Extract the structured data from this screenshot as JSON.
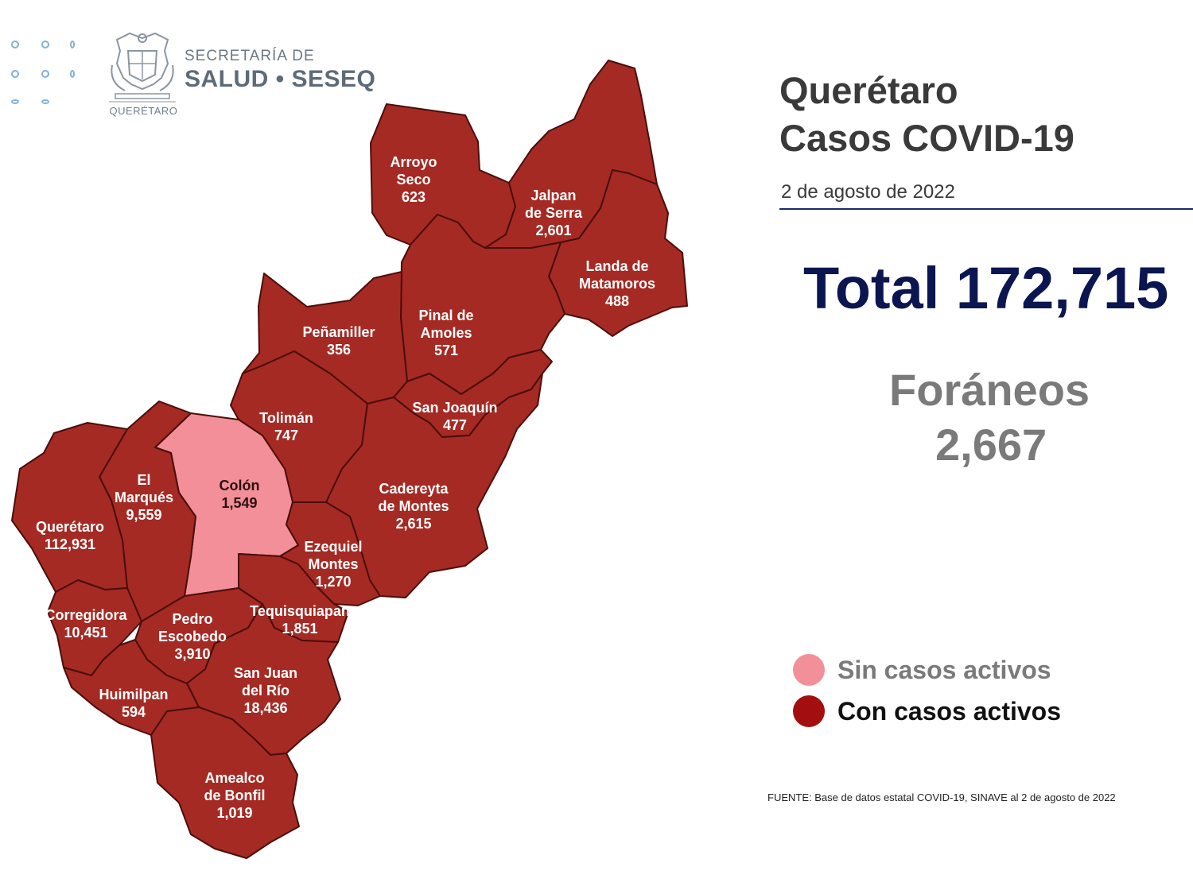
{
  "header": {
    "logo_line1": "SECRETARÍA DE",
    "logo_line2": "SALUD • SESEQ",
    "seal_caption": "QUERÉTARO"
  },
  "title": {
    "line1": "Querétaro",
    "line2": "Casos COVID-19",
    "date": "2 de agosto de 2022"
  },
  "total": "Total 172,715",
  "foraneos": {
    "label": "Foráneos",
    "value": "2,667"
  },
  "legend": {
    "inactive_label": "Sin casos activos",
    "inactive_color": "#f28f98",
    "inactive_text_color": "#7a7a7a",
    "active_label": "Con casos activos",
    "active_color": "#a30f0f",
    "active_text_color": "#111111"
  },
  "source": "FUENTE: Base de datos estatal COVID-19, SINAVE al 2 de agosto de 2022",
  "colors": {
    "active_fill": "#a52a24",
    "inactive_fill": "#f28f98",
    "border": "#4a0e0b"
  },
  "municipalities": [
    {
      "id": "arroyo-seco",
      "lines": [
        "Arroyo",
        "Seco"
      ],
      "cases": "623",
      "status": "active"
    },
    {
      "id": "jalpan",
      "lines": [
        "Jalpan",
        "de Serra"
      ],
      "cases": "2,601",
      "status": "active"
    },
    {
      "id": "landa",
      "lines": [
        "Landa de",
        "Matamoros"
      ],
      "cases": "488",
      "status": "active"
    },
    {
      "id": "pinal",
      "lines": [
        "Pinal de",
        "Amoles"
      ],
      "cases": "571",
      "status": "active"
    },
    {
      "id": "penamiller",
      "lines": [
        "Peñamiller"
      ],
      "cases": "356",
      "status": "active"
    },
    {
      "id": "tolimán",
      "lines": [
        "Tolimán"
      ],
      "cases": "747",
      "status": "active"
    },
    {
      "id": "san-joaquin",
      "lines": [
        "San Joaquín"
      ],
      "cases": "477",
      "status": "active"
    },
    {
      "id": "colon",
      "lines": [
        "Colón"
      ],
      "cases": "1,549",
      "status": "inactive"
    },
    {
      "id": "el-marques",
      "lines": [
        "El",
        "Marqués"
      ],
      "cases": "9,559",
      "status": "active"
    },
    {
      "id": "cadereyta",
      "lines": [
        "Cadereyta",
        "de Montes"
      ],
      "cases": "2,615",
      "status": "active"
    },
    {
      "id": "queretaro",
      "lines": [
        "Querétaro"
      ],
      "cases": "112,931",
      "status": "active"
    },
    {
      "id": "ezequiel-montes",
      "lines": [
        "Ezequiel",
        "Montes"
      ],
      "cases": "1,270",
      "status": "active"
    },
    {
      "id": "corregidora",
      "lines": [
        "Corregidora"
      ],
      "cases": "10,451",
      "status": "active"
    },
    {
      "id": "pedro-escobedo",
      "lines": [
        "Pedro",
        "Escobedo"
      ],
      "cases": "3,910",
      "status": "active"
    },
    {
      "id": "tequisquiapan",
      "lines": [
        "Tequisquiapan"
      ],
      "cases": "1,851",
      "status": "active"
    },
    {
      "id": "san-juan",
      "lines": [
        "San Juan",
        "del Río"
      ],
      "cases": "18,436",
      "status": "active"
    },
    {
      "id": "huimilpan",
      "lines": [
        "Huimilpan"
      ],
      "cases": "594",
      "status": "active"
    },
    {
      "id": "amealco",
      "lines": [
        "Amealco",
        "de Bonfil"
      ],
      "cases": "1,019",
      "status": "active"
    }
  ]
}
